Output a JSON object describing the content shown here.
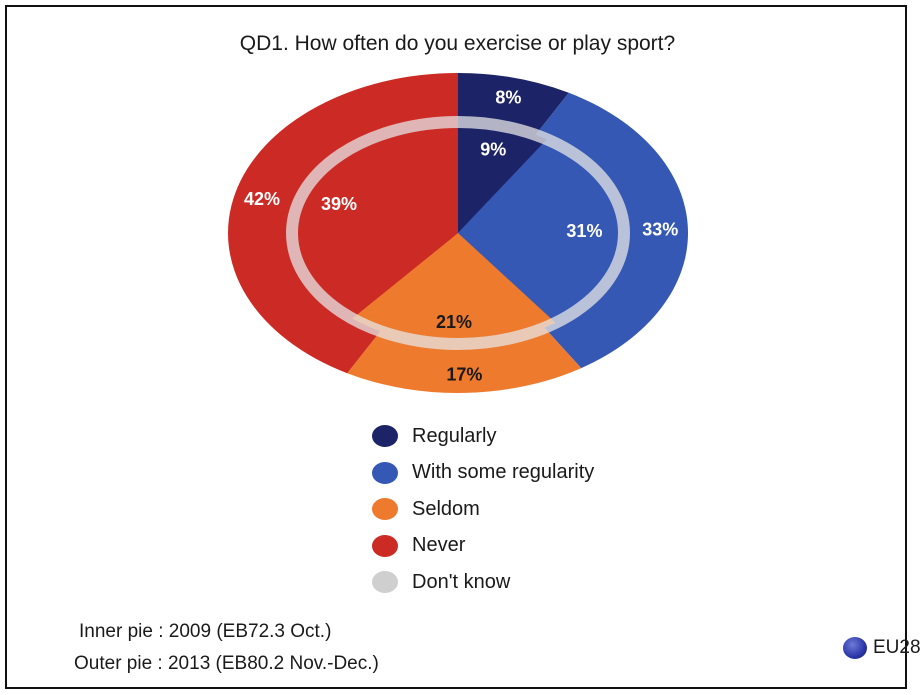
{
  "chart_data": {
    "type": "pie",
    "title": "QD1. How often do you exercise or play sport?",
    "categories": [
      "Regularly",
      "With some regularity",
      "Seldom",
      "Never",
      "Don't know"
    ],
    "series": [
      {
        "name": "Inner pie : 2009 (EB72.3 Oct.)",
        "values": [
          9,
          31,
          21,
          39,
          0
        ]
      },
      {
        "name": "Outer pie : 2013 (EB80.2 Nov.-Dec.)",
        "values": [
          8,
          33,
          17,
          42,
          0
        ]
      }
    ],
    "value_labels": {
      "inner": [
        "9%",
        "31%",
        "21%",
        "39%",
        ""
      ],
      "outer": [
        "8%",
        "33%",
        "17%",
        "42%",
        ""
      ]
    },
    "colors": [
      "#1c2366",
      "#3458b3",
      "#ee7a2d",
      "#cc2b25",
      "#cfcfcf"
    ],
    "legend": [
      {
        "label": "Regularly",
        "color": "#1c2366"
      },
      {
        "label": "With some regularity",
        "color": "#3458b3"
      },
      {
        "label": "Seldom",
        "color": "#ee7a2d"
      },
      {
        "label": "Never",
        "color": "#cc2b25"
      },
      {
        "label": "Don't know",
        "color": "#cfcfcf"
      }
    ],
    "legend_position": "bottom-center",
    "footnotes": {
      "inner": "Inner pie : 2009 (EB72.3 Oct.)",
      "outer": "Outer pie : 2013 (EB80.2 Nov.-Dec.)"
    },
    "region_label": "EU28"
  }
}
